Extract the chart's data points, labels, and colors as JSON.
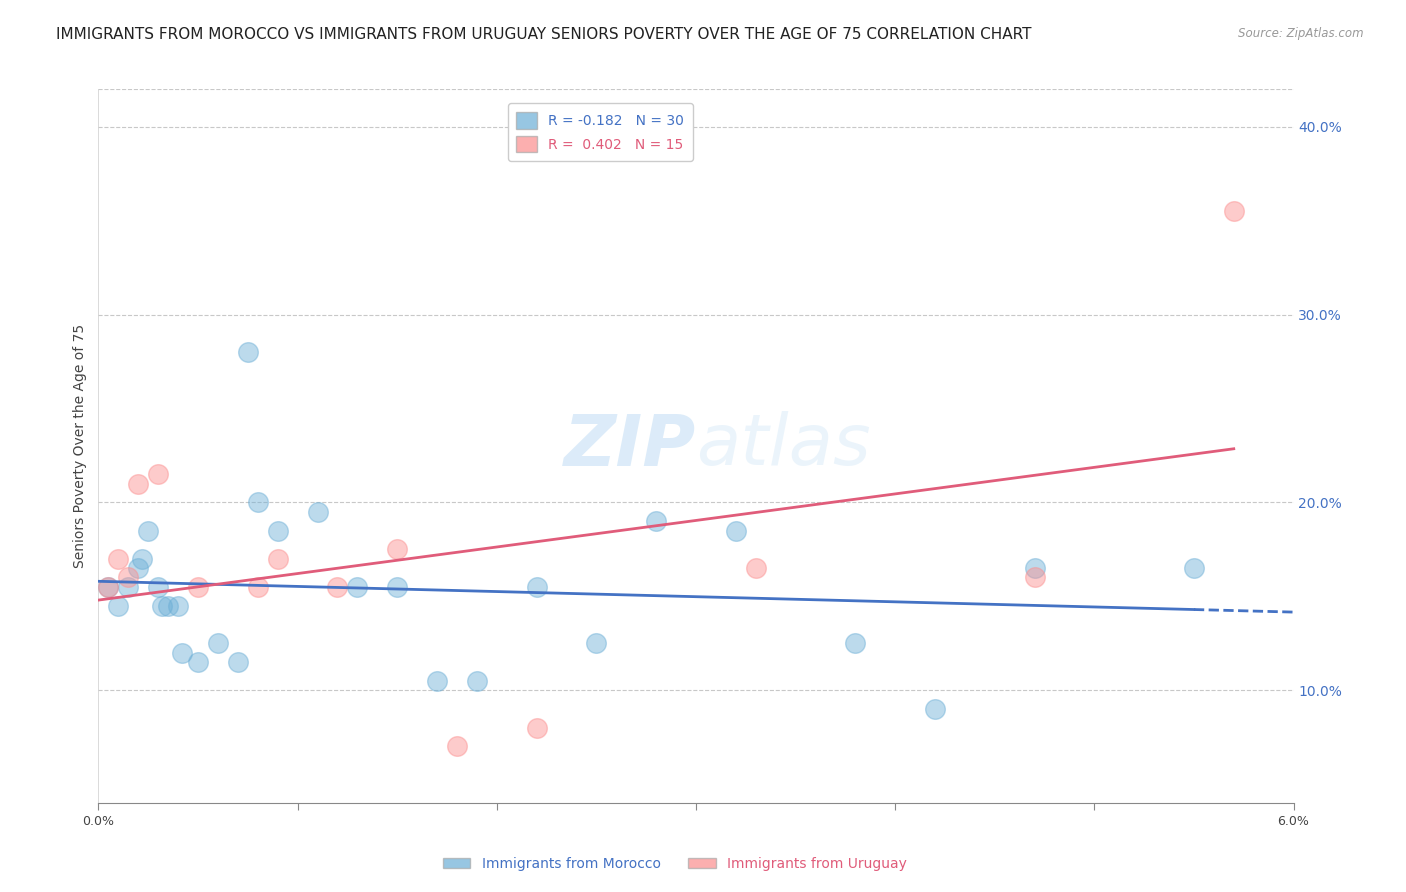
{
  "title": "IMMIGRANTS FROM MOROCCO VS IMMIGRANTS FROM URUGUAY SENIORS POVERTY OVER THE AGE OF 75 CORRELATION CHART",
  "source": "Source: ZipAtlas.com",
  "ylabel": "Seniors Poverty Over the Age of 75",
  "xlim": [
    0.0,
    0.06
  ],
  "ylim": [
    0.04,
    0.42
  ],
  "right_yticks": [
    0.1,
    0.2,
    0.3,
    0.4
  ],
  "right_yticklabels": [
    "10.0%",
    "20.0%",
    "30.0%",
    "40.0%"
  ],
  "xticks": [
    0.0,
    0.01,
    0.02,
    0.03,
    0.04,
    0.05,
    0.06
  ],
  "xticklabels": [
    "0.0%",
    "",
    "",
    "",
    "",
    "",
    "6.0%"
  ],
  "watermark": "ZIPatlas",
  "morocco_x": [
    0.0005,
    0.001,
    0.0015,
    0.002,
    0.0022,
    0.0025,
    0.003,
    0.0032,
    0.0035,
    0.004,
    0.0042,
    0.005,
    0.006,
    0.007,
    0.0075,
    0.008,
    0.009,
    0.011,
    0.013,
    0.015,
    0.017,
    0.019,
    0.022,
    0.025,
    0.028,
    0.032,
    0.038,
    0.042,
    0.047,
    0.055
  ],
  "morocco_y": [
    0.155,
    0.145,
    0.155,
    0.165,
    0.17,
    0.185,
    0.155,
    0.145,
    0.145,
    0.145,
    0.12,
    0.115,
    0.125,
    0.115,
    0.28,
    0.2,
    0.185,
    0.195,
    0.155,
    0.155,
    0.105,
    0.105,
    0.155,
    0.125,
    0.19,
    0.185,
    0.125,
    0.09,
    0.165,
    0.165
  ],
  "uruguay_x": [
    0.0005,
    0.001,
    0.0015,
    0.002,
    0.003,
    0.005,
    0.008,
    0.009,
    0.012,
    0.015,
    0.018,
    0.022,
    0.033,
    0.047,
    0.057
  ],
  "uruguay_y": [
    0.155,
    0.17,
    0.16,
    0.21,
    0.215,
    0.155,
    0.155,
    0.17,
    0.155,
    0.175,
    0.07,
    0.08,
    0.165,
    0.16,
    0.355
  ],
  "morocco_color": "#6baed6",
  "morocco_edge": "#6baed6",
  "uruguay_color": "#fc8d8d",
  "uruguay_edge": "#fc8d8d",
  "morocco_line_color": "#4472c4",
  "uruguay_line_color": "#e05c7a",
  "morocco_R": -0.182,
  "morocco_N": 30,
  "uruguay_R": 0.402,
  "uruguay_N": 15,
  "legend_label_morocco": "R = -0.182   N = 30",
  "legend_label_uruguay": "R =  0.402   N = 15",
  "legend_label_morocco_bottom": "Immigrants from Morocco",
  "legend_label_uruguay_bottom": "Immigrants from Uruguay",
  "title_fontsize": 11,
  "axis_label_fontsize": 10,
  "tick_fontsize": 9,
  "right_tick_color": "#4472c4",
  "background_color": "#ffffff",
  "grid_color": "#c8c8c8"
}
